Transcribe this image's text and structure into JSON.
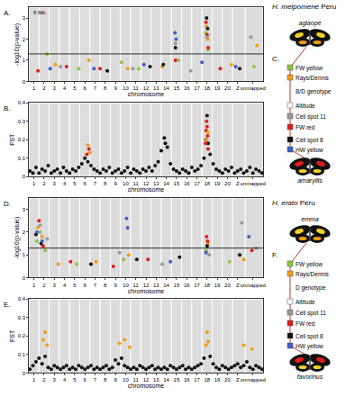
{
  "chart_data": [
    {
      "type": "scatter",
      "title": "A.",
      "xlabel": "chromosome",
      "ylabel": "-log10(p-value)",
      "xlim": [
        0.5,
        23.5
      ],
      "xticks": [
        1,
        2,
        3,
        4,
        5,
        6,
        7,
        8,
        9,
        10,
        11,
        12,
        13,
        14,
        15,
        16,
        17,
        18,
        19,
        20,
        {
          "value": 21,
          "label": "Z"
        },
        {
          "value": 22.5,
          "label": "unmapped"
        }
      ],
      "ylim": [
        0,
        3.5
      ],
      "yticks": [
        0,
        1,
        2,
        3
      ],
      "grid": false,
      "marker": "circle",
      "significance_line": 1.3,
      "annotations": [
        {
          "text": "5 Mb"
        }
      ],
      "series": [
        {
          "color": "#8dc63f",
          "x": [
            2.3,
            5.4,
            9.6,
            11.3,
            15.2,
            17.9,
            18.1,
            22.6
          ],
          "values": [
            1.3,
            0.6,
            0.9,
            0.6,
            1.0,
            2.3,
            1.5,
            0.7
          ]
        },
        {
          "color": "#f39c12",
          "x": [
            3.1,
            6.4,
            10.2,
            13.6,
            17.95,
            18.05,
            20.4,
            22.9
          ],
          "values": [
            0.8,
            1.0,
            0.6,
            0.7,
            2.6,
            2.0,
            0.8,
            1.7
          ]
        },
        {
          "color": "#e41a1c",
          "x": [
            1.4,
            4.2,
            7.5,
            14.9,
            17.9,
            18.0,
            18.1,
            19.3
          ],
          "values": [
            0.5,
            0.7,
            0.6,
            1.0,
            2.8,
            2.2,
            1.6,
            0.6
          ]
        },
        {
          "color": "#111111",
          "x": [
            8.2,
            12.4,
            13.7,
            14.9,
            17.95,
            18.05,
            21.2
          ],
          "values": [
            0.5,
            0.7,
            0.8,
            1.6,
            3.0,
            2.5,
            0.6
          ]
        },
        {
          "color": "#999999",
          "x": [
            3.6,
            10.7,
            14.9,
            16.4,
            18.0,
            22.3
          ],
          "values": [
            0.7,
            0.6,
            1.8,
            0.5,
            2.1,
            2.1
          ]
        },
        {
          "color": "#3a5fcd",
          "x": [
            2.6,
            6.9,
            11.8,
            14.85,
            14.95,
            17.5,
            20.8
          ],
          "values": [
            0.6,
            0.6,
            0.8,
            2.3,
            2.0,
            0.9,
            0.7
          ]
        }
      ]
    },
    {
      "type": "scatter",
      "title": "B.",
      "xlabel": "chromosome",
      "ylabel": "FST",
      "xlim": [
        0.5,
        23.5
      ],
      "xticks": [
        1,
        2,
        3,
        4,
        5,
        6,
        7,
        8,
        9,
        10,
        11,
        12,
        13,
        14,
        15,
        16,
        17,
        18,
        19,
        20,
        {
          "value": 21,
          "label": "Z"
        },
        {
          "value": 22.5,
          "label": "unmapped"
        }
      ],
      "ylim": [
        0,
        0.4
      ],
      "yticks": [
        0,
        0.1,
        0.2,
        0.3,
        0.4
      ],
      "grid": false,
      "marker": "circle",
      "series": [
        {
          "color": "#111111",
          "x": [
            0.6,
            0.9,
            1.2,
            1.5,
            1.8,
            2.1,
            2.4,
            2.7,
            3.0,
            3.3,
            3.6,
            3.9,
            4.2,
            4.5,
            4.8,
            5.1,
            5.4,
            5.7,
            6.0,
            6.3,
            6.6,
            6.9,
            7.2,
            7.5,
            7.8,
            8.1,
            8.4,
            8.7,
            9.0,
            9.3,
            9.6,
            9.9,
            10.2,
            10.5,
            10.8,
            11.1,
            11.4,
            11.7,
            12.0,
            12.3,
            12.6,
            12.9,
            13.2,
            13.5,
            13.8,
            14.1,
            14.4,
            14.7,
            15.0,
            15.3,
            15.6,
            15.9,
            16.2,
            16.5,
            16.8,
            17.1,
            17.4,
            17.7,
            18.3,
            18.6,
            18.9,
            19.2,
            19.5,
            19.8,
            20.1,
            20.4,
            20.7,
            21.0,
            21.3,
            21.6,
            21.9,
            22.2,
            22.5,
            22.8,
            23.1,
            23.4
          ],
          "values": [
            0.03,
            0.02,
            0.05,
            0.02,
            0.04,
            0.03,
            0.06,
            0.02,
            0.03,
            0.04,
            0.02,
            0.05,
            0.03,
            0.02,
            0.04,
            0.03,
            0.05,
            0.07,
            0.1,
            0.08,
            0.06,
            0.04,
            0.03,
            0.02,
            0.04,
            0.03,
            0.05,
            0.02,
            0.03,
            0.04,
            0.02,
            0.03,
            0.05,
            0.02,
            0.04,
            0.03,
            0.02,
            0.04,
            0.03,
            0.05,
            0.03,
            0.06,
            0.08,
            0.14,
            0.21,
            0.16,
            0.07,
            0.04,
            0.03,
            0.02,
            0.04,
            0.03,
            0.02,
            0.05,
            0.03,
            0.04,
            0.06,
            0.1,
            0.12,
            0.07,
            0.04,
            0.03,
            0.02,
            0.04,
            0.03,
            0.05,
            0.02,
            0.03,
            0.04,
            0.02,
            0.03,
            0.05,
            0.02,
            0.04,
            0.03,
            0.02
          ]
        },
        {
          "color": "#111111",
          "x": [
            17.9,
            18.0,
            18.1,
            13.9
          ],
          "values": [
            0.2,
            0.33,
            0.18,
            0.18
          ]
        },
        {
          "color": "#e41a1c",
          "x": [
            17.85,
            17.9,
            17.95,
            18.0,
            18.05,
            18.1,
            6.2,
            6.4
          ],
          "values": [
            0.18,
            0.25,
            0.3,
            0.27,
            0.22,
            0.15,
            0.12,
            0.15
          ]
        },
        {
          "color": "#f39c12",
          "x": [
            6.3,
            6.5,
            17.95,
            18.05
          ],
          "values": [
            0.17,
            0.13,
            0.2,
            0.24
          ]
        }
      ]
    },
    {
      "type": "scatter",
      "title": "D.",
      "xlabel": "chromosome",
      "ylabel": "-log10(p-value)",
      "xlim": [
        0.5,
        23.5
      ],
      "xticks": [
        1,
        2,
        3,
        4,
        5,
        6,
        7,
        8,
        9,
        10,
        11,
        12,
        13,
        14,
        15,
        16,
        17,
        18,
        19,
        20,
        {
          "value": 21,
          "label": "Z"
        },
        {
          "value": 22.5,
          "label": "unmapped"
        }
      ],
      "ylim": [
        0,
        3.5
      ],
      "yticks": [
        0,
        1,
        2,
        3
      ],
      "grid": false,
      "marker": "circle",
      "significance_line": 1.3,
      "series": [
        {
          "color": "#8dc63f",
          "x": [
            1.3,
            1.6,
            2.1,
            5.2,
            9.8,
            17.9,
            20.2
          ],
          "values": [
            1.6,
            2.0,
            1.2,
            0.6,
            0.8,
            1.2,
            0.7
          ]
        },
        {
          "color": "#f39c12",
          "x": [
            1.4,
            1.8,
            3.4,
            7.1,
            10.3,
            18.1,
            21.6
          ],
          "values": [
            2.2,
            1.8,
            0.6,
            0.7,
            1.0,
            1.5,
            0.8
          ]
        },
        {
          "color": "#e41a1c",
          "x": [
            1.5,
            1.9,
            4.6,
            8.8,
            12.2,
            17.95,
            18.05,
            22.4
          ],
          "values": [
            2.5,
            1.4,
            0.7,
            0.5,
            0.8,
            1.8,
            1.6,
            1.2
          ]
        },
        {
          "color": "#111111",
          "x": [
            1.2,
            1.7,
            6.6,
            11.1,
            15.3,
            18.0,
            21.2
          ],
          "values": [
            1.9,
            1.5,
            0.6,
            0.8,
            0.9,
            1.4,
            1.0
          ]
        },
        {
          "color": "#999999",
          "x": [
            1.6,
            2.3,
            9.4,
            13.6,
            18.2,
            21.4,
            22.8
          ],
          "values": [
            2.3,
            1.7,
            1.1,
            0.6,
            1.0,
            2.4,
            1.3
          ]
        },
        {
          "color": "#3a5fcd",
          "x": [
            1.3,
            1.8,
            10.1,
            10.2,
            14.4,
            17.9,
            22.1
          ],
          "values": [
            2.0,
            1.6,
            2.6,
            2.2,
            0.7,
            1.1,
            1.8
          ]
        }
      ]
    },
    {
      "type": "scatter",
      "title": "E.",
      "xlabel": "chromosome",
      "ylabel": "FST",
      "xlim": [
        0.5,
        23.5
      ],
      "xticks": [
        1,
        2,
        3,
        4,
        5,
        6,
        7,
        8,
        9,
        10,
        11,
        12,
        13,
        14,
        15,
        16,
        17,
        18,
        19,
        20,
        {
          "value": 21,
          "label": "Z"
        },
        {
          "value": 22.5,
          "label": "unmapped"
        }
      ],
      "ylim": [
        0,
        0.4
      ],
      "yticks": [
        0,
        0.1,
        0.2,
        0.3,
        0.4
      ],
      "grid": false,
      "marker": "circle",
      "series": [
        {
          "color": "#111111",
          "x": [
            0.6,
            0.9,
            1.2,
            1.5,
            1.8,
            2.1,
            2.4,
            2.7,
            3.0,
            3.3,
            3.6,
            3.9,
            4.2,
            4.5,
            4.8,
            5.1,
            5.4,
            5.7,
            6.0,
            6.3,
            6.6,
            6.9,
            7.2,
            7.5,
            7.8,
            8.1,
            8.4,
            8.7,
            9.0,
            9.3,
            9.6,
            9.9,
            10.2,
            10.5,
            10.8,
            11.1,
            11.4,
            11.7,
            12.0,
            12.3,
            12.6,
            12.9,
            13.2,
            13.5,
            13.8,
            14.1,
            14.4,
            14.7,
            15.0,
            15.3,
            15.6,
            15.9,
            16.2,
            16.5,
            16.8,
            17.1,
            17.4,
            17.7,
            18.3,
            18.6,
            18.9,
            19.2,
            19.5,
            19.8,
            20.1,
            20.4,
            20.7,
            21.0,
            21.3,
            21.6,
            21.9,
            22.2,
            22.5,
            22.8,
            23.1,
            23.4
          ],
          "values": [
            0.02,
            0.04,
            0.06,
            0.08,
            0.05,
            0.09,
            0.03,
            0.02,
            0.04,
            0.03,
            0.02,
            0.03,
            0.04,
            0.02,
            0.03,
            0.02,
            0.04,
            0.03,
            0.02,
            0.03,
            0.04,
            0.02,
            0.03,
            0.02,
            0.03,
            0.04,
            0.02,
            0.03,
            0.07,
            0.05,
            0.08,
            0.04,
            0.03,
            0.02,
            0.03,
            0.02,
            0.04,
            0.03,
            0.02,
            0.03,
            0.04,
            0.02,
            0.03,
            0.02,
            0.03,
            0.02,
            0.04,
            0.03,
            0.02,
            0.03,
            0.04,
            0.02,
            0.03,
            0.02,
            0.03,
            0.04,
            0.05,
            0.08,
            0.09,
            0.05,
            0.03,
            0.02,
            0.04,
            0.03,
            0.02,
            0.03,
            0.04,
            0.05,
            0.03,
            0.04,
            0.06,
            0.03,
            0.02,
            0.04,
            0.03,
            0.02
          ]
        },
        {
          "color": "#f39c12",
          "x": [
            1.9,
            2.1,
            2.3,
            9.4,
            9.9,
            10.4,
            17.9,
            18.0,
            18.1,
            21.6,
            22.4
          ],
          "values": [
            0.18,
            0.22,
            0.15,
            0.16,
            0.18,
            0.14,
            0.15,
            0.22,
            0.17,
            0.15,
            0.13
          ]
        }
      ]
    }
  ],
  "headings": [
    {
      "species": "H. melpomene",
      "place": "Peru"
    },
    {
      "species": "H. erato",
      "place": "Peru"
    }
  ],
  "diagrams": [
    {
      "label": "C.",
      "top": "aglaope",
      "bottom": "amaryllis",
      "nodes": [
        {
          "label": "FW yellow",
          "color": "#8dc63f"
        },
        {
          "label": "Rays/Dennis",
          "color": "#f39c12"
        },
        {
          "label": "B/D genotype"
        },
        {
          "label": "Altitude",
          "color": "#ffffff"
        },
        {
          "label": "Cell spot 11",
          "color": "#999999"
        },
        {
          "label": "FW red",
          "color": "#e41a1c"
        },
        {
          "label": "Cell spot 8",
          "color": "#111111"
        },
        {
          "label": "HW yellow",
          "color": "#3a5fcd"
        }
      ]
    },
    {
      "label": "F.",
      "top": "emma",
      "bottom": "favorinus",
      "nodes": [
        {
          "label": "FW yellow",
          "color": "#8dc63f"
        },
        {
          "label": "Rays/Dennis",
          "color": "#f39c12"
        },
        {
          "label": "D genotype"
        },
        {
          "label": "Altitude",
          "color": "#ffffff"
        },
        {
          "label": "Cell spot 11",
          "color": "#999999"
        },
        {
          "label": "FW red",
          "color": "#e41a1c"
        },
        {
          "label": "Cell spot 8",
          "color": "#111111"
        },
        {
          "label": "HW yellow",
          "color": "#3a5fcd"
        }
      ]
    }
  ]
}
